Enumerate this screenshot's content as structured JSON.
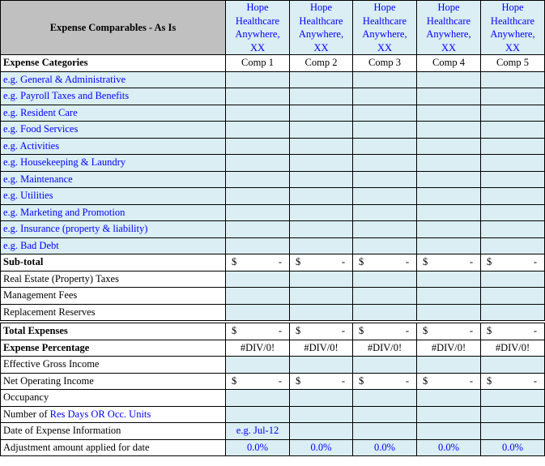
{
  "header": {
    "title": "Expense Comparables - As Is",
    "properties": [
      "Hope Healthcare Anywhere, XX",
      "Hope Healthcare Anywhere, XX",
      "Hope Healthcare Anywhere, XX",
      "Hope Healthcare Anywhere, XX",
      "Hope Healthcare Anywhere, XX"
    ]
  },
  "categories_label": "Expense Categories",
  "comps": [
    "Comp 1",
    "Comp 2",
    "Comp 3",
    "Comp 4",
    "Comp 5"
  ],
  "colors": {
    "input_fill": "#daeef3",
    "header_fill": "#c0c0c0",
    "input_text": "#0000ff"
  },
  "rows": [
    {
      "label": "e.g. General & Administrative",
      "style": "example",
      "type": "blank"
    },
    {
      "label": "e.g. Payroll Taxes and Benefits",
      "style": "example",
      "type": "blank"
    },
    {
      "label": "e.g. Resident Care",
      "style": "example",
      "type": "blank"
    },
    {
      "label": "e.g. Food Services",
      "style": "example",
      "type": "blank"
    },
    {
      "label": "e.g. Activities",
      "style": "example",
      "type": "blank"
    },
    {
      "label": "e.g. Housekeeping  & Laundry",
      "style": "example",
      "type": "blank"
    },
    {
      "label": "e.g. Maintenance",
      "style": "example",
      "type": "blank"
    },
    {
      "label": "e.g. Utilities",
      "style": "example",
      "type": "blank"
    },
    {
      "label": "e.g. Marketing and Promotion",
      "style": "example",
      "type": "blank"
    },
    {
      "label": "e.g. Insurance (property & liability)",
      "style": "example",
      "type": "blank"
    },
    {
      "label": "e.g. Bad Debt",
      "style": "example",
      "type": "blank"
    },
    {
      "label": "Sub-total",
      "style": "bold",
      "type": "dollar",
      "values": [
        "$ -",
        "$ -",
        "$ -",
        "$ -",
        "$ -"
      ]
    },
    {
      "label": "Real Estate (Property) Taxes",
      "style": "plain",
      "type": "blank"
    },
    {
      "label": "Management Fees",
      "style": "plain",
      "type": "blank"
    },
    {
      "label": "Replacement Reserves",
      "style": "plain",
      "type": "blank"
    },
    {
      "label": "Total Expenses",
      "style": "bold",
      "type": "dollar",
      "double": true,
      "values": [
        "$ -",
        "$ -",
        "$ -",
        "$ -",
        "$ -"
      ]
    },
    {
      "label": "Expense Percentage",
      "style": "bold",
      "type": "text",
      "values": [
        "#DIV/0!",
        "#DIV/0!",
        "#DIV/0!",
        "#DIV/0!",
        "#DIV/0!"
      ]
    },
    {
      "label": "Effective Gross Income",
      "style": "plain",
      "type": "blank"
    },
    {
      "label": "Net Operating Income",
      "style": "plain",
      "type": "dollar",
      "values": [
        "$ -",
        "$ -",
        "$ -",
        "$ -",
        "$ -"
      ]
    },
    {
      "label": "Occupancy",
      "style": "plain",
      "type": "blank"
    },
    {
      "label": "Number of ",
      "label_blue": "Res Days OR Occ. Units",
      "style": "plain",
      "type": "blank"
    },
    {
      "label": "Date of Expense Information",
      "style": "plain",
      "type": "input",
      "values": [
        "e.g. Jul-12",
        "",
        "",
        "",
        ""
      ]
    },
    {
      "label": "Adjustment amount applied for date",
      "style": "plain",
      "type": "input",
      "values": [
        "0.0%",
        "0.0%",
        "0.0%",
        "0.0%",
        "0.0%"
      ]
    }
  ]
}
